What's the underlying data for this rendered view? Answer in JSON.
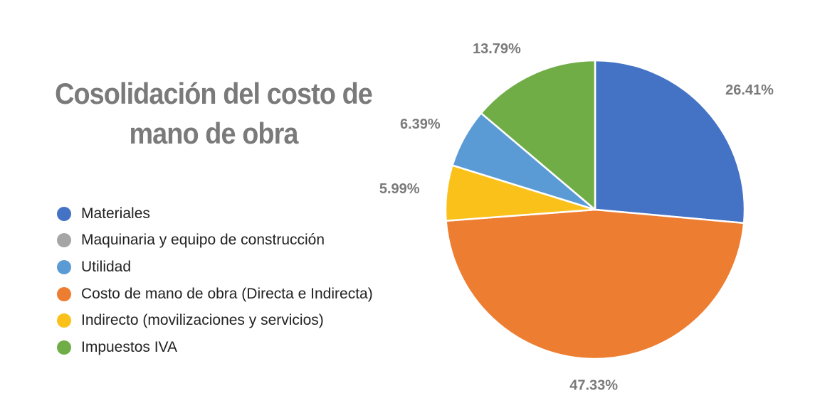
{
  "chart_data": {
    "type": "pie",
    "title": "Cosolidación del costo de mano de obra",
    "title_lines": [
      "Cosolidación del costo de",
      "mano de obra"
    ],
    "legend": [
      {
        "label": "Materiales",
        "color": "#4472C4"
      },
      {
        "label": "Maquinaria y equipo de construcción",
        "color": "#A5A5A5"
      },
      {
        "label": "Utilidad",
        "color": "#5B9BD5"
      },
      {
        "label": "Costo de mano de obra (Directa e Indirecta)",
        "color": "#ED7D31"
      },
      {
        "label": "Indirecto (movilizaciones y servicios)",
        "color": "#FBC11B"
      },
      {
        "label": "Impuestos IVA",
        "color": "#70AD47"
      }
    ],
    "slices": [
      {
        "label": "Materiales",
        "value": 26.41,
        "display": "26.41%",
        "color": "#4472C4"
      },
      {
        "label": "Costo de mano de obra (Directa e Indirecta)",
        "value": 47.33,
        "display": "47.33%",
        "color": "#ED7D31"
      },
      {
        "label": "Indirecto (movilizaciones y servicios)",
        "value": 5.99,
        "display": "5.99%",
        "color": "#FBC11B"
      },
      {
        "label": "Utilidad",
        "value": 6.39,
        "display": "6.39%",
        "color": "#5B9BD5"
      },
      {
        "label": "Impuestos IVA",
        "value": 13.79,
        "display": "13.79%",
        "color": "#70AD47"
      }
    ],
    "start_angle_deg": 0,
    "direction": "clockwise"
  }
}
